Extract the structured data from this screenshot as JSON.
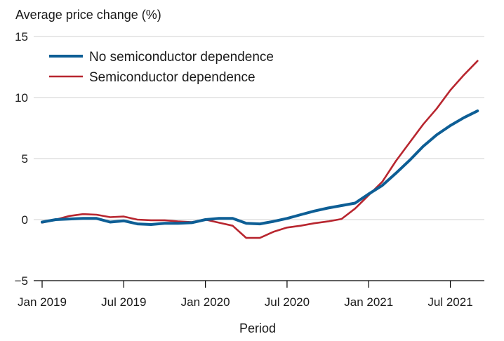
{
  "chart_data": {
    "type": "line",
    "title": "",
    "ylabel": "Average price change (%)",
    "xlabel": "Period",
    "ylim": [
      -5,
      15
    ],
    "yticks": [
      -5,
      0,
      5,
      10,
      15
    ],
    "xlim": [
      0,
      32.5
    ],
    "x_tick_positions": [
      0,
      6,
      12,
      18,
      24,
      30
    ],
    "x_tick_labels": [
      "Jan 2019",
      "Jul 2019",
      "Jan 2020",
      "Jul 2020",
      "Jan 2021",
      "Jul 2021"
    ],
    "grid": true,
    "legend_position": "top-left",
    "x": [
      0,
      1,
      2,
      3,
      4,
      5,
      6,
      7,
      8,
      9,
      10,
      11,
      12,
      13,
      14,
      15,
      16,
      17,
      18,
      19,
      20,
      21,
      22,
      23,
      24,
      25,
      26,
      27,
      28,
      29,
      30,
      31,
      32
    ],
    "series": [
      {
        "name": "No semiconductor dependence",
        "color": "#0d5e95",
        "values": [
          -0.2,
          0.0,
          0.05,
          0.1,
          0.1,
          -0.2,
          -0.1,
          -0.35,
          -0.4,
          -0.3,
          -0.3,
          -0.25,
          0.0,
          0.1,
          0.1,
          -0.3,
          -0.35,
          -0.15,
          0.1,
          0.4,
          0.7,
          0.95,
          1.15,
          1.35,
          2.1,
          2.8,
          3.8,
          4.85,
          6.0,
          6.95,
          7.7,
          8.35,
          8.9
        ]
      },
      {
        "name": "Semiconductor dependence",
        "color": "#b8262f",
        "values": [
          -0.25,
          0.0,
          0.3,
          0.45,
          0.4,
          0.2,
          0.25,
          0.0,
          -0.05,
          -0.05,
          -0.15,
          -0.2,
          0.0,
          -0.25,
          -0.5,
          -1.5,
          -1.5,
          -1.0,
          -0.65,
          -0.5,
          -0.3,
          -0.15,
          0.05,
          0.9,
          2.0,
          3.1,
          4.8,
          6.3,
          7.8,
          9.1,
          10.6,
          11.85,
          13.0
        ]
      }
    ]
  }
}
